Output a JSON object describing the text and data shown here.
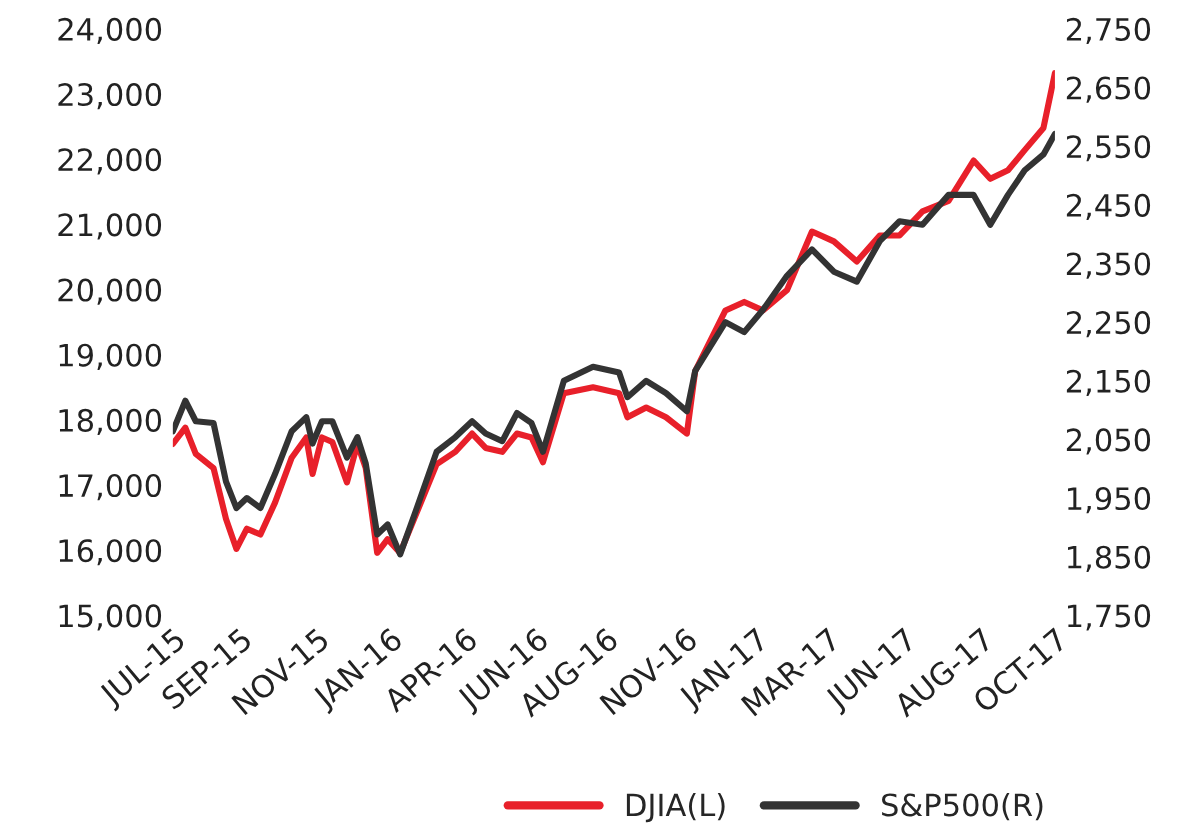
{
  "chart_data": {
    "type": "line",
    "x": [
      "2015-07-01",
      "2015-07-13",
      "2015-07-23",
      "2015-08-09",
      "2015-08-21",
      "2015-08-31",
      "2015-09-10",
      "2015-09-23",
      "2015-10-07",
      "2015-10-23",
      "2015-11-06",
      "2015-11-12",
      "2015-11-21",
      "2015-12-01",
      "2015-12-15",
      "2015-12-25",
      "2016-01-02",
      "2016-01-13",
      "2016-01-23",
      "2016-02-04",
      "2016-02-20",
      "2016-03-10",
      "2016-03-28",
      "2016-04-13",
      "2016-04-26",
      "2016-05-12",
      "2016-05-26",
      "2016-06-09",
      "2016-06-20",
      "2016-07-10",
      "2016-08-07",
      "2016-09-01",
      "2016-09-09",
      "2016-09-27",
      "2016-10-16",
      "2016-11-05",
      "2016-11-13",
      "2016-12-12",
      "2016-12-30",
      "2017-01-17",
      "2017-02-09",
      "2017-03-05",
      "2017-03-26",
      "2017-04-17",
      "2017-05-09",
      "2017-05-28",
      "2017-06-19",
      "2017-07-14",
      "2017-08-07",
      "2017-08-23",
      "2017-09-09",
      "2017-09-25",
      "2017-10-13",
      "2017-10-24"
    ],
    "xlim": [
      "2015-07-01",
      "2017-10-24"
    ],
    "series": [
      {
        "name": "DJIA(L)",
        "color": "#e8202a",
        "axis": "y",
        "values": [
          17630,
          17880,
          17480,
          17260,
          16480,
          16020,
          16330,
          16240,
          16730,
          17420,
          17730,
          17170,
          17730,
          17660,
          17040,
          17630,
          17260,
          15960,
          16170,
          15960,
          16580,
          17320,
          17510,
          17790,
          17570,
          17510,
          17790,
          17730,
          17350,
          18410,
          18500,
          18410,
          18040,
          18190,
          18040,
          17790,
          18750,
          19680,
          19810,
          19680,
          19990,
          20890,
          20740,
          20430,
          20830,
          20830,
          21200,
          21360,
          21980,
          21700,
          21830,
          22140,
          22480,
          23320
        ]
      },
      {
        "name": "S&P500(R)",
        "color": "#333333",
        "axis": "y2",
        "values": [
          2064,
          2116,
          2081,
          2078,
          1978,
          1933,
          1950,
          1933,
          1991,
          2064,
          2088,
          2043,
          2081,
          2081,
          2019,
          2054,
          2009,
          1888,
          1905,
          1854,
          1933,
          2029,
          2054,
          2081,
          2060,
          2047,
          2095,
          2078,
          2029,
          2150,
          2174,
          2164,
          2122,
          2150,
          2129,
          2098,
          2167,
          2250,
          2233,
          2271,
          2329,
          2374,
          2336,
          2319,
          2388,
          2422,
          2416,
          2467,
          2467,
          2416,
          2467,
          2509,
          2536,
          2571
        ]
      }
    ],
    "xticks": [
      {
        "value": "2015-07-01",
        "label": "JUL-15"
      },
      {
        "value": "2015-09-03",
        "label": "SEP-15"
      },
      {
        "value": "2015-11-16",
        "label": "NOV-15"
      },
      {
        "value": "2016-01-25",
        "label": "JAN-16"
      },
      {
        "value": "2016-04-06",
        "label": "APR-16"
      },
      {
        "value": "2016-06-13",
        "label": "JUN-16"
      },
      {
        "value": "2016-08-19",
        "label": "AUG-16"
      },
      {
        "value": "2016-11-03",
        "label": "NOV-16"
      },
      {
        "value": "2017-01-10",
        "label": "JAN-17"
      },
      {
        "value": "2017-03-20",
        "label": "MAR-17"
      },
      {
        "value": "2017-06-01",
        "label": "JUN-17"
      },
      {
        "value": "2017-08-14",
        "label": "AUG-17"
      },
      {
        "value": "2017-10-24",
        "label": "OCT-17"
      }
    ],
    "ylim": [
      15000,
      24000
    ],
    "yticks": [
      {
        "value": 15000,
        "label": "15,000"
      },
      {
        "value": 16000,
        "label": "16,000"
      },
      {
        "value": 17000,
        "label": "17,000"
      },
      {
        "value": 18000,
        "label": "18,000"
      },
      {
        "value": 19000,
        "label": "19,000"
      },
      {
        "value": 20000,
        "label": "20,000"
      },
      {
        "value": 21000,
        "label": "21,000"
      },
      {
        "value": 22000,
        "label": "22,000"
      },
      {
        "value": 23000,
        "label": "23,000"
      },
      {
        "value": 24000,
        "label": "24,000"
      }
    ],
    "y2lim": [
      1750,
      2750
    ],
    "y2ticks": [
      {
        "value": 1750,
        "label": "1,750"
      },
      {
        "value": 1850,
        "label": "1,850"
      },
      {
        "value": 1950,
        "label": "1,950"
      },
      {
        "value": 2050,
        "label": "2,050"
      },
      {
        "value": 2150,
        "label": "2,150"
      },
      {
        "value": 2250,
        "label": "2,250"
      },
      {
        "value": 2350,
        "label": "2,350"
      },
      {
        "value": 2450,
        "label": "2,450"
      },
      {
        "value": 2550,
        "label": "2,550"
      },
      {
        "value": 2650,
        "label": "2,650"
      },
      {
        "value": 2750,
        "label": "2,750"
      }
    ],
    "grid": false,
    "legend": "bottom right",
    "line_style": "solid",
    "marker": "none"
  }
}
